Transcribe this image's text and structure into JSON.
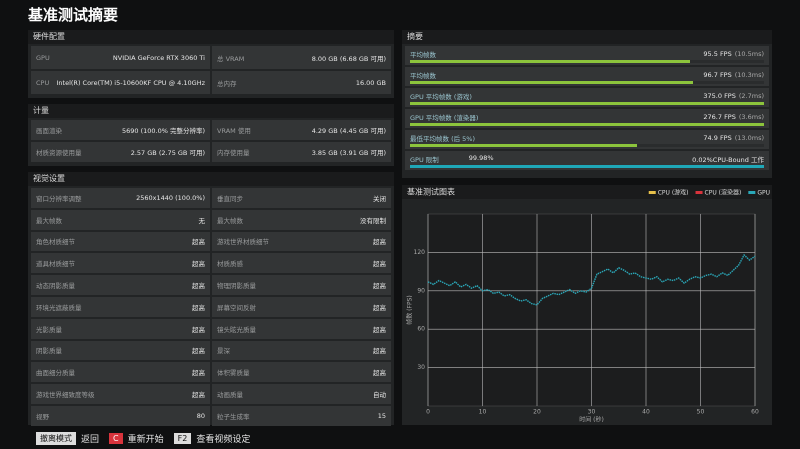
{
  "header": {
    "title": "基准测试摘要"
  },
  "hardware": {
    "title": "硬件配置",
    "rows": [
      [
        {
          "label": "GPU",
          "value": "NVIDIA GeForce RTX 3060 Ti"
        },
        {
          "label": "总 VRAM",
          "value": "8.00 GB (6.68 GB 可用)"
        }
      ],
      [
        {
          "label": "CPU",
          "value": "Intel(R) Core(TM) i5-10600KF CPU @ 4.10GHz"
        },
        {
          "label": "总内存",
          "value": "16.00 GB"
        }
      ]
    ]
  },
  "metrics": {
    "title": "计量",
    "rows": [
      [
        {
          "label": "画面渲染",
          "value": "5690 (100.0% 完整分辨率)"
        },
        {
          "label": "VRAM 使用",
          "value": "4.29 GB (4.45 GB 可用)"
        }
      ],
      [
        {
          "label": "材质资源使用量",
          "value": "2.57 GB (2.75 GB 可用)"
        },
        {
          "label": "内存使用量",
          "value": "3.85 GB (3.91 GB 可用)"
        }
      ]
    ]
  },
  "visual": {
    "title": "视觉设置",
    "rows": [
      [
        {
          "label": "窗口分辨率调整",
          "value": "2560x1440 (100.0%)"
        },
        {
          "label": "垂直同步",
          "value": "关闭"
        }
      ],
      [
        {
          "label": "最大帧数",
          "value": "无"
        },
        {
          "label": "最大帧数",
          "value": "没有限制"
        }
      ],
      [
        {
          "label": "角色材质细节",
          "value": "超高"
        },
        {
          "label": "游戏世界材质细节",
          "value": "超高"
        }
      ],
      [
        {
          "label": "道具材质细节",
          "value": "超高"
        },
        {
          "label": "材质质感",
          "value": "超高"
        }
      ],
      [
        {
          "label": "动态阴影质量",
          "value": "超高"
        },
        {
          "label": "物理阴影质量",
          "value": "超高"
        }
      ],
      [
        {
          "label": "环境光遮蔽质量",
          "value": "超高"
        },
        {
          "label": "屏幕空间反射",
          "value": "超高"
        }
      ],
      [
        {
          "label": "光影质量",
          "value": "超高"
        },
        {
          "label": "镜头眩光质量",
          "value": "超高"
        }
      ],
      [
        {
          "label": "阴影质量",
          "value": "超高"
        },
        {
          "label": "景深",
          "value": "超高"
        }
      ],
      [
        {
          "label": "曲面细分质量",
          "value": "超高"
        },
        {
          "label": "体积雾质量",
          "value": "超高"
        }
      ],
      [
        {
          "label": "游戏世界细致度等级",
          "value": "超高"
        },
        {
          "label": "动画质量",
          "value": "自动"
        }
      ],
      [
        {
          "label": "视野",
          "value": "80"
        },
        {
          "label": "粒子生成率",
          "value": "15"
        }
      ]
    ]
  },
  "summary": {
    "title": "摘要",
    "rows": [
      {
        "label": "平均帧数",
        "value": "95.5 FPS",
        "detail": "(10.5ms)",
        "fill": 79,
        "color": "#8cc43c"
      },
      {
        "label": "平均帧数",
        "value": "96.7 FPS",
        "detail": "(10.3ms)",
        "fill": 80,
        "color": "#8cc43c"
      },
      {
        "label": "GPU 平均帧数 (游戏)",
        "value": "375.0 FPS",
        "detail": "(2.7ms)",
        "fill": 100,
        "color": "#8cc43c"
      },
      {
        "label": "GPU 平均帧数 (渲染器)",
        "value": "276.7 FPS",
        "detail": "(3.6ms)",
        "fill": 100,
        "color": "#8cc43c"
      },
      {
        "label": "最低平均帧数 (后 5%)",
        "value": "74.9 FPS",
        "detail": "(13.0ms)",
        "fill": 64,
        "color": "#8cc43c"
      },
      {
        "label": "GPU 限制",
        "value": "99.98%",
        "right": "0.02%CPU-Bound 工作",
        "fill": 100,
        "color": "#1fa8b8"
      }
    ]
  },
  "chart_data": {
    "type": "line",
    "title": "基准测试图表",
    "x_label": "时间 (秒)",
    "y_label": "帧数 (FPS)",
    "xlim": [
      0,
      60
    ],
    "xticks": [
      0,
      10,
      20,
      30,
      40,
      50,
      60
    ],
    "ylim": [
      0,
      150
    ],
    "yticks": [
      30,
      60,
      90,
      120
    ],
    "grid": true,
    "x": [
      0,
      1,
      2,
      3,
      4,
      5,
      6,
      7,
      8,
      9,
      10,
      11,
      12,
      13,
      14,
      15,
      16,
      17,
      18,
      19,
      20,
      21,
      22,
      23,
      24,
      25,
      26,
      27,
      28,
      29,
      30,
      31,
      32,
      33,
      34,
      35,
      36,
      37,
      38,
      39,
      40,
      41,
      42,
      43,
      44,
      45,
      46,
      47,
      48,
      49,
      50,
      51,
      52,
      53,
      54,
      55,
      56,
      57,
      58,
      59,
      60
    ],
    "series": [
      {
        "name": "CPU (游戏)",
        "color": "#e6c04a",
        "values": [
          null,
          null,
          null,
          null,
          null,
          null,
          null,
          null,
          null,
          null,
          null,
          null,
          null,
          null,
          null,
          null,
          null,
          null,
          null,
          null,
          null,
          null,
          null,
          null,
          null,
          null,
          null,
          null,
          null,
          null,
          null,
          null,
          null,
          null,
          null,
          null,
          null,
          null,
          null,
          null,
          null,
          null,
          null,
          null,
          null,
          null,
          null,
          null,
          null,
          null,
          null,
          null,
          null,
          null,
          null,
          null,
          null,
          null,
          null,
          null,
          null
        ]
      },
      {
        "name": "CPU (渲染器)",
        "color": "#d8333c",
        "values": [
          null,
          null,
          null,
          null,
          null,
          null,
          null,
          null,
          null,
          null,
          null,
          null,
          null,
          null,
          null,
          null,
          null,
          null,
          null,
          null,
          null,
          null,
          null,
          null,
          null,
          null,
          null,
          null,
          null,
          null,
          null,
          null,
          null,
          null,
          null,
          null,
          null,
          null,
          null,
          null,
          null,
          null,
          null,
          null,
          null,
          null,
          null,
          null,
          null,
          null,
          null,
          null,
          null,
          null,
          null,
          null,
          null,
          null,
          null,
          null,
          null
        ]
      },
      {
        "name": "GPU",
        "color": "#2aa7b8",
        "values": [
          97,
          95,
          98,
          96,
          94,
          97,
          93,
          95,
          92,
          94,
          90,
          91,
          88,
          89,
          86,
          87,
          84,
          82,
          83,
          80,
          79,
          84,
          86,
          88,
          87,
          89,
          91,
          88,
          90,
          89,
          92,
          103,
          105,
          107,
          104,
          108,
          106,
          103,
          104,
          101,
          100,
          99,
          101,
          97,
          99,
          98,
          100,
          96,
          99,
          101,
          100,
          102,
          103,
          101,
          104,
          102,
          106,
          110,
          118,
          114,
          117
        ]
      }
    ]
  },
  "footer": {
    "buttons": [
      {
        "key": "撤离模式",
        "label": "返回"
      },
      {
        "key": "C",
        "label": "重新开始"
      },
      {
        "key": "F2",
        "label": "查看视频设定"
      }
    ]
  }
}
